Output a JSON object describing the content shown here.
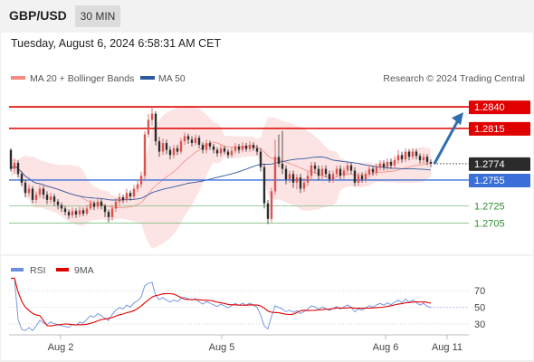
{
  "header": {
    "pair": "GBP/USD",
    "interval": "30 MIN"
  },
  "datetime": "Tuesday, August 6, 2024 6:58:31 AM CET",
  "legend": {
    "bb": "MA 20 + Bollinger Bands",
    "ma50": "MA 50",
    "rsi": "RSI",
    "ma9": "9MA"
  },
  "credit": "Research © 2024 Trading Central",
  "colors": {
    "bull": "#d9534f",
    "bear": "#2b2b2b",
    "resistance": "#e00000",
    "support_blue": "#3b6fd8",
    "support_green": "#2e8b2e",
    "ma50": "#2f5aa0",
    "bb": "#f4a6a6",
    "rsi": "#6a8fe0",
    "rsi_ma": "#e00000",
    "arrow": "#2f6fb0"
  },
  "chart_data": [
    {
      "type": "candlestick",
      "x_ticks": [
        "Aug 2",
        "Aug 5",
        "Aug 6",
        "Aug 11"
      ],
      "ylim": [
        1.2673,
        1.2859
      ],
      "current_price": "1.2774",
      "levels": [
        {
          "value": 1.284,
          "label": "1.2840",
          "kind": "resistance"
        },
        {
          "value": 1.2815,
          "label": "1.2815",
          "kind": "resistance"
        },
        {
          "value": 1.2755,
          "label": "1.2755",
          "kind": "support"
        },
        {
          "value": 1.2725,
          "label": "1.2725",
          "kind": "minor"
        },
        {
          "value": 1.2705,
          "label": "1.2705",
          "kind": "minor"
        }
      ],
      "forecast": {
        "from": 1.2774,
        "to": 1.284
      },
      "candles": [
        [
          1.279,
          1.2768,
          1.2792,
          1.2765
        ],
        [
          1.2768,
          1.2775,
          1.278,
          1.2762
        ],
        [
          1.2775,
          1.2762,
          1.2778,
          1.2758
        ],
        [
          1.2762,
          1.2752,
          1.2765,
          1.2748
        ],
        [
          1.2752,
          1.274,
          1.2755,
          1.2735
        ],
        [
          1.274,
          1.2745,
          1.275,
          1.2736
        ],
        [
          1.2745,
          1.2732,
          1.2748,
          1.2728
        ],
        [
          1.2732,
          1.2738,
          1.2742,
          1.2728
        ],
        [
          1.2738,
          1.2745,
          1.2749,
          1.2734
        ],
        [
          1.2745,
          1.2738,
          1.2748,
          1.2733
        ],
        [
          1.2738,
          1.2732,
          1.2742,
          1.2727
        ],
        [
          1.2732,
          1.2736,
          1.274,
          1.2728
        ],
        [
          1.2736,
          1.273,
          1.2739,
          1.2725
        ],
        [
          1.273,
          1.2726,
          1.2733,
          1.2721
        ],
        [
          1.2726,
          1.2722,
          1.2729,
          1.2718
        ],
        [
          1.2722,
          1.2718,
          1.2725,
          1.2714
        ],
        [
          1.2718,
          1.2714,
          1.2721,
          1.271
        ],
        [
          1.2714,
          1.2719,
          1.2723,
          1.2711
        ],
        [
          1.2719,
          1.2715,
          1.2722,
          1.2711
        ],
        [
          1.2715,
          1.272,
          1.2724,
          1.2712
        ],
        [
          1.272,
          1.2716,
          1.2723,
          1.2713
        ],
        [
          1.2716,
          1.2722,
          1.2726,
          1.2714
        ],
        [
          1.2722,
          1.2728,
          1.2732,
          1.272
        ],
        [
          1.2728,
          1.2724,
          1.2731,
          1.272
        ],
        [
          1.2724,
          1.273,
          1.2734,
          1.2721
        ],
        [
          1.273,
          1.2725,
          1.2733,
          1.2721
        ],
        [
          1.2725,
          1.2718,
          1.2727,
          1.2712
        ],
        [
          1.2718,
          1.2712,
          1.2721,
          1.2706
        ],
        [
          1.2712,
          1.2722,
          1.2726,
          1.2708
        ],
        [
          1.2722,
          1.273,
          1.2734,
          1.2718
        ],
        [
          1.273,
          1.2735,
          1.274,
          1.2726
        ],
        [
          1.2735,
          1.2732,
          1.2738,
          1.2728
        ],
        [
          1.2732,
          1.274,
          1.2745,
          1.2729
        ],
        [
          1.274,
          1.2736,
          1.2743,
          1.2731
        ],
        [
          1.2736,
          1.2745,
          1.2749,
          1.2732
        ],
        [
          1.2745,
          1.275,
          1.2755,
          1.2741
        ],
        [
          1.275,
          1.276,
          1.2765,
          1.2746
        ],
        [
          1.276,
          1.2808,
          1.2812,
          1.2756
        ],
        [
          1.2808,
          1.2825,
          1.2832,
          1.2804
        ],
        [
          1.2825,
          1.2832,
          1.284,
          1.2818
        ],
        [
          1.2832,
          1.28,
          1.2835,
          1.2795
        ],
        [
          1.28,
          1.2788,
          1.2805,
          1.2782
        ],
        [
          1.2788,
          1.2798,
          1.2803,
          1.2784
        ],
        [
          1.2798,
          1.279,
          1.2802,
          1.2785
        ],
        [
          1.279,
          1.2784,
          1.2794,
          1.2779
        ],
        [
          1.2784,
          1.2792,
          1.2796,
          1.278
        ],
        [
          1.2792,
          1.2788,
          1.2796,
          1.2784
        ],
        [
          1.2788,
          1.28,
          1.2804,
          1.2785
        ],
        [
          1.28,
          1.2806,
          1.281,
          1.2796
        ],
        [
          1.2806,
          1.2802,
          1.2809,
          1.2797
        ],
        [
          1.2802,
          1.2798,
          1.2806,
          1.2794
        ],
        [
          1.2798,
          1.2804,
          1.2808,
          1.2795
        ],
        [
          1.2804,
          1.2796,
          1.2807,
          1.2792
        ],
        [
          1.2796,
          1.279,
          1.2799,
          1.2786
        ],
        [
          1.279,
          1.2798,
          1.2802,
          1.2786
        ],
        [
          1.2798,
          1.2794,
          1.2801,
          1.279
        ],
        [
          1.2794,
          1.279,
          1.2797,
          1.2786
        ],
        [
          1.279,
          1.2786,
          1.2793,
          1.2782
        ],
        [
          1.2786,
          1.2792,
          1.2796,
          1.2782
        ],
        [
          1.2792,
          1.2788,
          1.2795,
          1.2785
        ],
        [
          1.2788,
          1.2784,
          1.2791,
          1.278
        ],
        [
          1.2784,
          1.2789,
          1.2793,
          1.2781
        ],
        [
          1.2789,
          1.2794,
          1.2798,
          1.2786
        ],
        [
          1.2794,
          1.279,
          1.2797,
          1.2786
        ],
        [
          1.279,
          1.2795,
          1.2799,
          1.2787
        ],
        [
          1.2795,
          1.2791,
          1.2798,
          1.2788
        ],
        [
          1.2791,
          1.2796,
          1.28,
          1.2788
        ],
        [
          1.2796,
          1.2792,
          1.2799,
          1.2789
        ],
        [
          1.2792,
          1.2788,
          1.2796,
          1.2784
        ],
        [
          1.2788,
          1.277,
          1.2792,
          1.2765
        ],
        [
          1.277,
          1.2728,
          1.2774,
          1.2722
        ],
        [
          1.2728,
          1.271,
          1.2732,
          1.2704
        ],
        [
          1.271,
          1.2742,
          1.2746,
          1.2706
        ],
        [
          1.2742,
          1.2782,
          1.2802,
          1.2738
        ],
        [
          1.2782,
          1.2774,
          1.2808,
          1.277
        ],
        [
          1.2774,
          1.2768,
          1.2812,
          1.2762
        ],
        [
          1.2768,
          1.2756,
          1.2772,
          1.275
        ],
        [
          1.2756,
          1.2762,
          1.2766,
          1.2752
        ],
        [
          1.2762,
          1.2752,
          1.2766,
          1.2746
        ],
        [
          1.2752,
          1.2758,
          1.2762,
          1.2744
        ],
        [
          1.2758,
          1.2745,
          1.2762,
          1.274
        ],
        [
          1.2745,
          1.2752,
          1.2757,
          1.2741
        ],
        [
          1.2752,
          1.276,
          1.2765,
          1.2748
        ],
        [
          1.276,
          1.2772,
          1.2776,
          1.2756
        ],
        [
          1.2772,
          1.2768,
          1.2776,
          1.2763
        ],
        [
          1.2768,
          1.276,
          1.2772,
          1.2755
        ],
        [
          1.276,
          1.2768,
          1.2772,
          1.2756
        ],
        [
          1.2768,
          1.2762,
          1.2772,
          1.2758
        ],
        [
          1.2762,
          1.2756,
          1.2766,
          1.2752
        ],
        [
          1.2756,
          1.2762,
          1.2766,
          1.2752
        ],
        [
          1.2762,
          1.2768,
          1.2772,
          1.2758
        ],
        [
          1.2768,
          1.276,
          1.2772,
          1.2756
        ],
        [
          1.276,
          1.2766,
          1.277,
          1.2756
        ],
        [
          1.2766,
          1.2772,
          1.2776,
          1.2762
        ],
        [
          1.2772,
          1.2766,
          1.2775,
          1.2762
        ],
        [
          1.2766,
          1.2752,
          1.277,
          1.2748
        ],
        [
          1.2752,
          1.276,
          1.2764,
          1.2748
        ],
        [
          1.276,
          1.2756,
          1.2764,
          1.2752
        ],
        [
          1.2756,
          1.2762,
          1.2766,
          1.2752
        ],
        [
          1.2762,
          1.2768,
          1.2772,
          1.2758
        ],
        [
          1.2768,
          1.2764,
          1.2771,
          1.276
        ],
        [
          1.2764,
          1.277,
          1.2774,
          1.276
        ],
        [
          1.277,
          1.2774,
          1.2778,
          1.2766
        ],
        [
          1.2774,
          1.277,
          1.2778,
          1.2766
        ],
        [
          1.277,
          1.2776,
          1.278,
          1.2766
        ],
        [
          1.2776,
          1.2772,
          1.278,
          1.2768
        ],
        [
          1.2772,
          1.2778,
          1.2783,
          1.2768
        ],
        [
          1.2778,
          1.2784,
          1.279,
          1.2774
        ],
        [
          1.2784,
          1.2779,
          1.2788,
          1.2775
        ],
        [
          1.2779,
          1.2788,
          1.2792,
          1.2776
        ],
        [
          1.2788,
          1.2782,
          1.2791,
          1.2778
        ],
        [
          1.2782,
          1.2788,
          1.2792,
          1.2779
        ],
        [
          1.2788,
          1.2783,
          1.2791,
          1.2779
        ],
        [
          1.2783,
          1.2778,
          1.2786,
          1.2774
        ],
        [
          1.2778,
          1.2782,
          1.2786,
          1.2774
        ],
        [
          1.2782,
          1.2776,
          1.2785,
          1.2772
        ],
        [
          1.2776,
          1.2774,
          1.2779,
          1.277
        ]
      ]
    },
    {
      "type": "line",
      "ylim": [
        20,
        80
      ],
      "yticks": [
        70,
        50,
        30
      ],
      "series_names": [
        "RSI",
        "9MA"
      ]
    }
  ]
}
